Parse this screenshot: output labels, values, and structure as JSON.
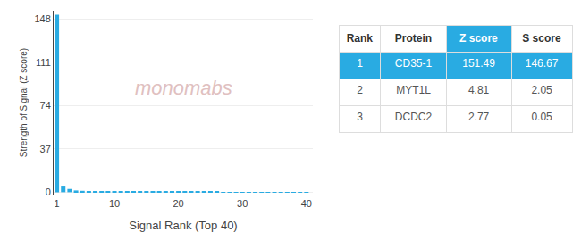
{
  "chart_data": {
    "type": "bar",
    "xlabel": "Signal Rank (Top 40)",
    "ylabel": "Strength of Signal (Z score)",
    "x": [
      1,
      2,
      3,
      4,
      5,
      6,
      7,
      8,
      9,
      10,
      11,
      12,
      13,
      14,
      15,
      16,
      17,
      18,
      19,
      20,
      21,
      22,
      23,
      24,
      25,
      26,
      27,
      28,
      29,
      30,
      31,
      32,
      33,
      34,
      35,
      36,
      37,
      38,
      39,
      40
    ],
    "values": [
      151.49,
      4.81,
      2.77,
      1.5,
      1.2,
      1.0,
      0.9,
      0.8,
      0.75,
      0.7,
      0.65,
      0.6,
      0.58,
      0.55,
      0.52,
      0.5,
      0.48,
      0.46,
      0.44,
      0.42,
      0.4,
      0.38,
      0.36,
      0.34,
      0.32,
      0.3,
      0.28,
      0.26,
      0.24,
      0.22,
      0.2,
      0.18,
      0.17,
      0.16,
      0.15,
      0.14,
      0.13,
      0.12,
      0.11,
      0.1
    ],
    "color": "#29abe2",
    "xlim": [
      0.5,
      41
    ],
    "ylim": [
      -2,
      155
    ],
    "xticks": [
      1,
      10,
      20,
      30,
      40
    ],
    "yticks": [
      0,
      37,
      74,
      111,
      148
    ],
    "grid": true,
    "annotations": [
      {
        "text": "monomabs",
        "color": "#e0c0c0"
      }
    ],
    "table": {
      "header": [
        "Rank",
        "Protein",
        "Z score",
        "S score"
      ],
      "rows": [
        [
          "1",
          "CD35-1",
          "151.49",
          "146.67"
        ],
        [
          "2",
          "MYT1L",
          "4.81",
          "2.05"
        ],
        [
          "3",
          "DCDC2",
          "2.77",
          "0.05"
        ]
      ]
    }
  }
}
